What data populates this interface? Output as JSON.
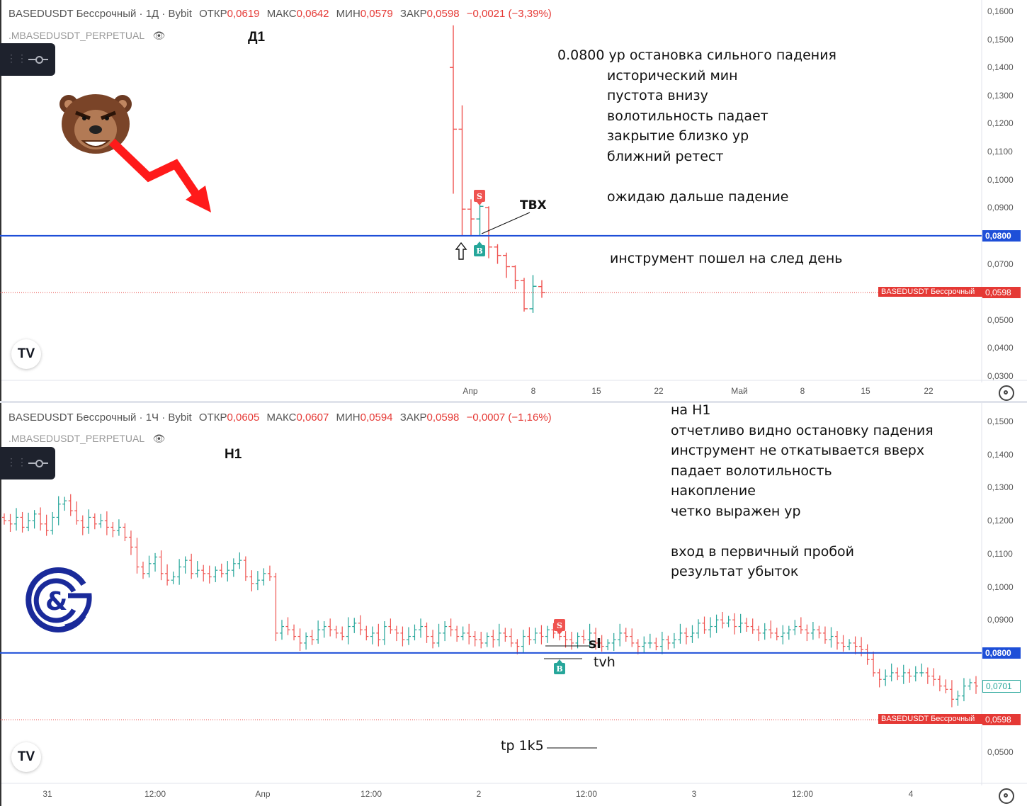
{
  "colors": {
    "up": "#26a69a",
    "down": "#ef5350",
    "level": "#1e4fd8",
    "price": "#e53935"
  },
  "top": {
    "header": {
      "symbol": "BASEDUSDT Бессрочный · 1Д · Bybit",
      "open_l": "ОТКР",
      "open_v": "0,0619",
      "high_l": "МАКС",
      "high_v": "0,0642",
      "low_l": "МИН",
      "low_v": "0,0579",
      "close_l": "ЗАКР",
      "close_v": "0,0598",
      "change": "−0,0021 (−3,39%)"
    },
    "subheader": ".MBASEDUSDT_PERPETUAL",
    "timeframe": "Д1",
    "notes": [
      "0.0800 ур остановка сильного падения",
      "исторический мин",
      "пустота внизу",
      "волотильность падает",
      "закрытие близко ур",
      "ближний ретест",
      "",
      "ожидаю дальше падение"
    ],
    "note2": "инструмент пошел на след день",
    "tvx": "ТВХ",
    "badge_sell": "S",
    "badge_buy": "B",
    "price_axis": [
      "0,1600",
      "0,1500",
      "0,1400",
      "0,1300",
      "0,1200",
      "0,1100",
      "0,1000",
      "0,0900",
      "0,0800",
      "0,0700",
      "0,0600",
      "0,0500",
      "0,0400",
      "0,0300"
    ],
    "level_label": "0,0800",
    "last_label": "0,0598",
    "symbol_tag": "BASEDUSDT Бессрочный",
    "time_axis": [
      "Апр",
      "8",
      "15",
      "22",
      "Май",
      "8",
      "15",
      "22"
    ]
  },
  "bottom": {
    "header": {
      "symbol": "BASEDUSDT Бессрочный · 1Ч · Bybit",
      "open_l": "ОТКР",
      "open_v": "0,0605",
      "high_l": "МАКС",
      "high_v": "0,0607",
      "low_l": "МИН",
      "low_v": "0,0594",
      "close_l": "ЗАКР",
      "close_v": "0,0598",
      "change": "−0,0007 (−1,16%)"
    },
    "subheader": ".MBASEDUSDT_PERPETUAL",
    "timeframe": "H1",
    "notes": [
      "на H1",
      "отчетливо видно остановку падения",
      "инструмент не откатывается вверх",
      "падает волотильность",
      "накопление",
      "четко выражен ур",
      "",
      "вход в первичный пробой",
      "результат убыток"
    ],
    "sl": "sl",
    "tvh": "tvh",
    "tp": "tp 1k5",
    "badge_sell": "S",
    "badge_buy": "B",
    "price_axis": [
      "0,1500",
      "0,1400",
      "0,1300",
      "0,1200",
      "0,1100",
      "0,1000",
      "0,0900",
      "0,0800",
      "0,0700",
      "0,0600",
      "0,0500"
    ],
    "level_label": "0,0800",
    "last_label": "0,0598",
    "current_label": "0,0701",
    "symbol_tag": "BASEDUSDT Бессрочный",
    "time_axis": [
      "31",
      "12:00",
      "Апр",
      "12:00",
      "2",
      "12:00",
      "3",
      "12:00",
      "4"
    ]
  },
  "chart_data": [
    {
      "type": "candlestick",
      "title": "BASEDUSDT Бессрочный · 1Д · Bybit",
      "ylim": [
        0.03,
        0.16
      ],
      "level": 0.08,
      "last": 0.0598,
      "candles": [
        {
          "o": 0.14,
          "h": 0.155,
          "l": 0.095,
          "c": 0.118
        },
        {
          "o": 0.118,
          "h": 0.1265,
          "l": 0.08,
          "c": 0.0895
        },
        {
          "o": 0.0895,
          "h": 0.093,
          "l": 0.08,
          "c": 0.086
        },
        {
          "o": 0.086,
          "h": 0.096,
          "l": 0.08,
          "c": 0.0905
        },
        {
          "o": 0.09,
          "h": 0.0905,
          "l": 0.072,
          "c": 0.076
        },
        {
          "o": 0.076,
          "h": 0.077,
          "l": 0.07,
          "c": 0.073
        },
        {
          "o": 0.073,
          "h": 0.074,
          "l": 0.065,
          "c": 0.069
        },
        {
          "o": 0.069,
          "h": 0.0695,
          "l": 0.061,
          "c": 0.064
        },
        {
          "o": 0.064,
          "h": 0.065,
          "l": 0.053,
          "c": 0.054
        },
        {
          "o": 0.054,
          "h": 0.066,
          "l": 0.0525,
          "c": 0.062
        },
        {
          "o": 0.0619,
          "h": 0.0642,
          "l": 0.0579,
          "c": 0.0598
        }
      ]
    },
    {
      "type": "candlestick",
      "title": "BASEDUSDT Бессрочный · 1Ч · Bybit",
      "ylim": [
        0.045,
        0.155
      ],
      "level": 0.08,
      "last": 0.0598,
      "current": 0.0701,
      "closes": [
        0.12,
        0.119,
        0.121,
        0.118,
        0.12,
        0.122,
        0.119,
        0.117,
        0.121,
        0.125,
        0.126,
        0.123,
        0.12,
        0.118,
        0.121,
        0.119,
        0.12,
        0.118,
        0.117,
        0.118,
        0.115,
        0.112,
        0.106,
        0.104,
        0.107,
        0.109,
        0.104,
        0.102,
        0.103,
        0.106,
        0.108,
        0.104,
        0.105,
        0.104,
        0.103,
        0.105,
        0.104,
        0.105,
        0.107,
        0.108,
        0.103,
        0.101,
        0.102,
        0.104,
        0.103,
        0.086,
        0.088,
        0.087,
        0.085,
        0.083,
        0.085,
        0.084,
        0.087,
        0.088,
        0.087,
        0.086,
        0.085,
        0.088,
        0.089,
        0.087,
        0.085,
        0.086,
        0.084,
        0.088,
        0.087,
        0.086,
        0.084,
        0.085,
        0.087,
        0.088,
        0.085,
        0.083,
        0.086,
        0.088,
        0.087,
        0.085,
        0.086,
        0.085,
        0.084,
        0.083,
        0.085,
        0.084,
        0.086,
        0.085,
        0.083,
        0.082,
        0.085,
        0.084,
        0.086,
        0.085,
        0.087,
        0.086,
        0.085,
        0.084,
        0.083,
        0.085,
        0.084,
        0.086,
        0.083,
        0.082,
        0.083,
        0.084,
        0.086,
        0.085,
        0.083,
        0.082,
        0.083,
        0.083,
        0.082,
        0.084,
        0.083,
        0.084,
        0.086,
        0.085,
        0.086,
        0.089,
        0.087,
        0.088,
        0.09,
        0.089,
        0.09,
        0.088,
        0.089,
        0.088,
        0.087,
        0.086,
        0.087,
        0.086,
        0.085,
        0.086,
        0.087,
        0.088,
        0.087,
        0.086,
        0.087,
        0.086,
        0.084,
        0.085,
        0.083,
        0.082,
        0.083,
        0.082,
        0.081,
        0.078,
        0.074,
        0.072,
        0.073,
        0.074,
        0.073,
        0.074,
        0.073,
        0.074,
        0.074,
        0.073,
        0.072,
        0.07,
        0.069,
        0.066,
        0.067,
        0.07,
        0.071,
        0.07
      ]
    }
  ]
}
